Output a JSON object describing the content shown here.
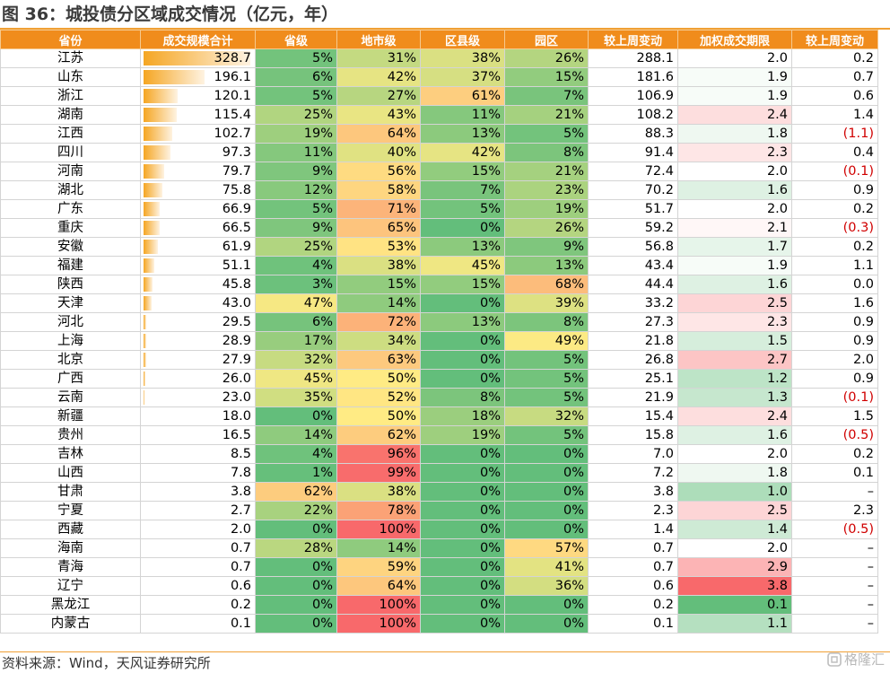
{
  "title": "图 36：城投债分区域成交情况（亿元，年）",
  "source": "资料来源：Wind，天风证券研究所",
  "watermark": "格隆汇",
  "headers": [
    "省份",
    "成交规模合计",
    "省级",
    "地市级",
    "区县级",
    "园区",
    "较上周变动",
    "加权成交期限",
    "较上周变动"
  ],
  "rows": [
    {
      "prov": "江苏",
      "total": "328.7",
      "sheng": "5%",
      "dishi": "31%",
      "quxian": "38%",
      "yuanqu": "26%",
      "chg": "288.1",
      "term": "2.0",
      "termchg": "0.2"
    },
    {
      "prov": "山东",
      "total": "196.1",
      "sheng": "6%",
      "dishi": "42%",
      "quxian": "37%",
      "yuanqu": "15%",
      "chg": "181.6",
      "term": "1.9",
      "termchg": "0.7"
    },
    {
      "prov": "浙江",
      "total": "120.1",
      "sheng": "5%",
      "dishi": "27%",
      "quxian": "61%",
      "yuanqu": "7%",
      "chg": "106.9",
      "term": "1.9",
      "termchg": "0.6"
    },
    {
      "prov": "湖南",
      "total": "115.4",
      "sheng": "25%",
      "dishi": "43%",
      "quxian": "11%",
      "yuanqu": "21%",
      "chg": "108.2",
      "term": "2.4",
      "termchg": "1.4"
    },
    {
      "prov": "江西",
      "total": "102.7",
      "sheng": "19%",
      "dishi": "64%",
      "quxian": "13%",
      "yuanqu": "5%",
      "chg": "88.3",
      "term": "1.8",
      "termchg": "(1.1)"
    },
    {
      "prov": "四川",
      "total": "97.3",
      "sheng": "11%",
      "dishi": "40%",
      "quxian": "42%",
      "yuanqu": "8%",
      "chg": "91.4",
      "term": "2.3",
      "termchg": "0.4"
    },
    {
      "prov": "河南",
      "total": "79.7",
      "sheng": "9%",
      "dishi": "56%",
      "quxian": "15%",
      "yuanqu": "21%",
      "chg": "72.4",
      "term": "2.0",
      "termchg": "(0.1)"
    },
    {
      "prov": "湖北",
      "total": "75.8",
      "sheng": "12%",
      "dishi": "58%",
      "quxian": "7%",
      "yuanqu": "23%",
      "chg": "70.2",
      "term": "1.6",
      "termchg": "0.9"
    },
    {
      "prov": "广东",
      "total": "66.9",
      "sheng": "5%",
      "dishi": "71%",
      "quxian": "5%",
      "yuanqu": "19%",
      "chg": "51.7",
      "term": "2.0",
      "termchg": "0.2"
    },
    {
      "prov": "重庆",
      "total": "66.5",
      "sheng": "9%",
      "dishi": "65%",
      "quxian": "0%",
      "yuanqu": "26%",
      "chg": "59.2",
      "term": "2.1",
      "termchg": "(0.3)"
    },
    {
      "prov": "安徽",
      "total": "61.9",
      "sheng": "25%",
      "dishi": "53%",
      "quxian": "13%",
      "yuanqu": "9%",
      "chg": "56.8",
      "term": "1.7",
      "termchg": "0.2"
    },
    {
      "prov": "福建",
      "total": "51.1",
      "sheng": "4%",
      "dishi": "38%",
      "quxian": "45%",
      "yuanqu": "13%",
      "chg": "43.4",
      "term": "1.9",
      "termchg": "1.1"
    },
    {
      "prov": "陕西",
      "total": "45.8",
      "sheng": "3%",
      "dishi": "15%",
      "quxian": "15%",
      "yuanqu": "68%",
      "chg": "44.4",
      "term": "1.6",
      "termchg": "0.0"
    },
    {
      "prov": "天津",
      "total": "43.0",
      "sheng": "47%",
      "dishi": "14%",
      "quxian": "0%",
      "yuanqu": "39%",
      "chg": "33.2",
      "term": "2.5",
      "termchg": "1.6"
    },
    {
      "prov": "河北",
      "total": "29.5",
      "sheng": "6%",
      "dishi": "72%",
      "quxian": "13%",
      "yuanqu": "8%",
      "chg": "27.3",
      "term": "2.3",
      "termchg": "0.9"
    },
    {
      "prov": "上海",
      "total": "28.9",
      "sheng": "17%",
      "dishi": "34%",
      "quxian": "0%",
      "yuanqu": "49%",
      "chg": "21.8",
      "term": "1.5",
      "termchg": "0.9"
    },
    {
      "prov": "北京",
      "total": "27.9",
      "sheng": "32%",
      "dishi": "63%",
      "quxian": "0%",
      "yuanqu": "5%",
      "chg": "26.8",
      "term": "2.7",
      "termchg": "2.0"
    },
    {
      "prov": "广西",
      "total": "26.0",
      "sheng": "45%",
      "dishi": "50%",
      "quxian": "0%",
      "yuanqu": "5%",
      "chg": "25.1",
      "term": "1.2",
      "termchg": "0.9"
    },
    {
      "prov": "云南",
      "total": "23.0",
      "sheng": "35%",
      "dishi": "52%",
      "quxian": "8%",
      "yuanqu": "5%",
      "chg": "21.9",
      "term": "1.3",
      "termchg": "(0.1)"
    },
    {
      "prov": "新疆",
      "total": "18.0",
      "sheng": "0%",
      "dishi": "50%",
      "quxian": "18%",
      "yuanqu": "32%",
      "chg": "15.4",
      "term": "2.4",
      "termchg": "1.5"
    },
    {
      "prov": "贵州",
      "total": "16.5",
      "sheng": "14%",
      "dishi": "62%",
      "quxian": "19%",
      "yuanqu": "5%",
      "chg": "15.8",
      "term": "1.6",
      "termchg": "(0.5)"
    },
    {
      "prov": "吉林",
      "total": "8.5",
      "sheng": "4%",
      "dishi": "96%",
      "quxian": "0%",
      "yuanqu": "0%",
      "chg": "7.0",
      "term": "2.0",
      "termchg": "0.2"
    },
    {
      "prov": "山西",
      "total": "7.8",
      "sheng": "1%",
      "dishi": "99%",
      "quxian": "0%",
      "yuanqu": "0%",
      "chg": "7.2",
      "term": "1.8",
      "termchg": "0.1"
    },
    {
      "prov": "甘肃",
      "total": "3.8",
      "sheng": "62%",
      "dishi": "38%",
      "quxian": "0%",
      "yuanqu": "0%",
      "chg": "3.8",
      "term": "1.0",
      "termchg": "–"
    },
    {
      "prov": "宁夏",
      "total": "2.7",
      "sheng": "22%",
      "dishi": "78%",
      "quxian": "0%",
      "yuanqu": "0%",
      "chg": "2.3",
      "term": "2.5",
      "termchg": "2.3"
    },
    {
      "prov": "西藏",
      "total": "2.0",
      "sheng": "0%",
      "dishi": "100%",
      "quxian": "0%",
      "yuanqu": "0%",
      "chg": "1.4",
      "term": "1.4",
      "termchg": "(0.5)"
    },
    {
      "prov": "海南",
      "total": "0.7",
      "sheng": "28%",
      "dishi": "14%",
      "quxian": "0%",
      "yuanqu": "57%",
      "chg": "0.7",
      "term": "2.0",
      "termchg": "–"
    },
    {
      "prov": "青海",
      "total": "0.7",
      "sheng": "0%",
      "dishi": "59%",
      "quxian": "0%",
      "yuanqu": "41%",
      "chg": "0.7",
      "term": "2.9",
      "termchg": "–"
    },
    {
      "prov": "辽宁",
      "total": "0.6",
      "sheng": "0%",
      "dishi": "64%",
      "quxian": "0%",
      "yuanqu": "36%",
      "chg": "0.6",
      "term": "3.8",
      "termchg": "–"
    },
    {
      "prov": "黑龙江",
      "total": "0.2",
      "sheng": "0%",
      "dishi": "100%",
      "quxian": "0%",
      "yuanqu": "0%",
      "chg": "0.2",
      "term": "0.1",
      "termchg": "–"
    },
    {
      "prov": "内蒙古",
      "total": "0.1",
      "sheng": "0%",
      "dishi": "100%",
      "quxian": "0%",
      "yuanqu": "0%",
      "chg": "0.1",
      "term": "1.1",
      "termchg": "–"
    }
  ],
  "colors": {
    "header_bg": "#f08c1c",
    "bar": "#f5a623",
    "negative": "#d00000",
    "pct_low": "#63be7b",
    "pct_mid": "#ffeb84",
    "pct_high": "#f8696b",
    "term_low": "#63be7b",
    "term_high": "#f8696b"
  }
}
